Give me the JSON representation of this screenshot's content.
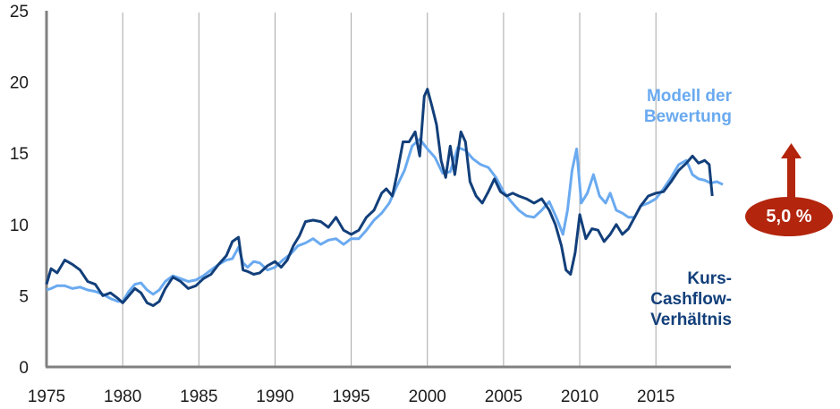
{
  "chart_data": {
    "type": "line",
    "title": "",
    "xlabel": "",
    "ylabel": "",
    "ylim": [
      0,
      25
    ],
    "xlim": [
      1975,
      2019.5
    ],
    "yticks": [
      0,
      5,
      10,
      15,
      20,
      25
    ],
    "xticks": [
      1975,
      1980,
      1985,
      1990,
      1995,
      2000,
      2005,
      2010,
      2015
    ],
    "grid": "vertical lines at each 5-year tick",
    "series": [
      {
        "name": "Kurs-Cashflow-Verhältnis",
        "color": "#123f7a",
        "x": [
          1975.0,
          1975.3,
          1975.7,
          1976.2,
          1976.7,
          1977.2,
          1977.7,
          1978.2,
          1978.7,
          1979.2,
          1979.7,
          1980.0,
          1980.4,
          1980.8,
          1981.2,
          1981.6,
          1982.0,
          1982.4,
          1982.8,
          1983.3,
          1983.8,
          1984.3,
          1984.8,
          1985.3,
          1985.8,
          1986.3,
          1986.8,
          1987.2,
          1987.6,
          1987.9,
          1988.2,
          1988.6,
          1989.0,
          1989.5,
          1990.0,
          1990.4,
          1990.8,
          1991.2,
          1991.6,
          1992.0,
          1992.5,
          1993.0,
          1993.5,
          1994.0,
          1994.5,
          1995.0,
          1995.5,
          1996.0,
          1996.5,
          1997.0,
          1997.3,
          1997.7,
          1998.0,
          1998.4,
          1998.8,
          1999.2,
          1999.5,
          1999.8,
          2000.0,
          2000.3,
          2000.6,
          2000.9,
          2001.2,
          2001.5,
          2001.8,
          2002.2,
          2002.5,
          2002.8,
          2003.2,
          2003.6,
          2004.0,
          2004.4,
          2004.8,
          2005.2,
          2005.6,
          2006.0,
          2006.5,
          2007.0,
          2007.5,
          2008.0,
          2008.4,
          2008.8,
          2009.1,
          2009.4,
          2009.7,
          2010.0,
          2010.4,
          2010.8,
          2011.2,
          2011.6,
          2012.0,
          2012.4,
          2012.8,
          2013.2,
          2013.6,
          2014.0,
          2014.5,
          2015.0,
          2015.5,
          2016.0,
          2016.5,
          2017.0,
          2017.4,
          2017.8,
          2018.2,
          2018.5,
          2018.7
        ],
        "values": [
          5.8,
          6.9,
          6.6,
          7.5,
          7.2,
          6.8,
          6.0,
          5.8,
          5.0,
          5.2,
          4.8,
          4.5,
          5.0,
          5.5,
          5.2,
          4.5,
          4.3,
          4.6,
          5.5,
          6.3,
          6.0,
          5.5,
          5.7,
          6.2,
          6.5,
          7.2,
          7.8,
          8.8,
          9.1,
          6.8,
          6.7,
          6.5,
          6.6,
          7.1,
          7.4,
          7.0,
          7.5,
          8.5,
          9.2,
          10.2,
          10.3,
          10.2,
          9.8,
          10.5,
          9.6,
          9.3,
          9.6,
          10.5,
          11.0,
          12.2,
          12.5,
          12.0,
          13.5,
          15.8,
          15.8,
          16.5,
          14.8,
          19.0,
          19.5,
          18.3,
          17.0,
          14.5,
          13.3,
          15.5,
          13.5,
          16.5,
          15.8,
          13.0,
          12.0,
          11.5,
          12.3,
          13.2,
          12.3,
          12.0,
          12.2,
          12.0,
          11.8,
          11.5,
          11.8,
          11.0,
          10.0,
          8.5,
          6.8,
          6.5,
          8.0,
          10.7,
          9.0,
          9.7,
          9.6,
          8.8,
          9.3,
          10.0,
          9.3,
          9.7,
          10.5,
          11.3,
          12.0,
          12.2,
          12.3,
          13.0,
          13.8,
          14.3,
          14.8,
          14.3,
          14.5,
          14.2,
          12.0
        ]
      },
      {
        "name": "Modell der Bewertung",
        "color": "#6aaaf0",
        "x": [
          1975.0,
          1975.3,
          1975.7,
          1976.2,
          1976.7,
          1977.2,
          1977.7,
          1978.2,
          1978.7,
          1979.2,
          1979.7,
          1980.0,
          1980.4,
          1980.8,
          1981.2,
          1981.6,
          1982.0,
          1982.4,
          1982.8,
          1983.3,
          1983.8,
          1984.3,
          1984.8,
          1985.3,
          1985.8,
          1986.3,
          1986.8,
          1987.2,
          1987.6,
          1987.9,
          1988.2,
          1988.6,
          1989.0,
          1989.5,
          1990.0,
          1990.5,
          1991.0,
          1991.5,
          1992.0,
          1992.5,
          1993.0,
          1993.5,
          1994.0,
          1994.5,
          1995.0,
          1995.5,
          1996.0,
          1996.5,
          1997.0,
          1997.5,
          1998.0,
          1998.5,
          1999.0,
          1999.5,
          2000.0,
          2000.5,
          2001.0,
          2001.5,
          2002.0,
          2002.5,
          2003.0,
          2003.5,
          2004.0,
          2004.5,
          2005.0,
          2005.5,
          2006.0,
          2006.5,
          2007.0,
          2007.5,
          2008.0,
          2008.5,
          2008.9,
          2009.2,
          2009.5,
          2009.8,
          2010.1,
          2010.5,
          2010.9,
          2011.3,
          2011.7,
          2012.0,
          2012.4,
          2012.8,
          2013.2,
          2013.6,
          2014.0,
          2014.5,
          2015.0,
          2015.5,
          2016.0,
          2016.5,
          2017.0,
          2017.4,
          2017.8,
          2018.2,
          2018.6,
          2019.0,
          2019.4
        ],
        "values": [
          5.4,
          5.5,
          5.7,
          5.7,
          5.5,
          5.6,
          5.4,
          5.3,
          5.1,
          4.8,
          4.6,
          4.6,
          5.3,
          5.8,
          5.9,
          5.4,
          5.1,
          5.4,
          6.0,
          6.4,
          6.2,
          6.0,
          6.1,
          6.4,
          6.8,
          7.2,
          7.5,
          7.6,
          8.4,
          7.3,
          7.0,
          7.4,
          7.3,
          6.8,
          7.0,
          7.5,
          7.9,
          8.5,
          8.7,
          9.0,
          8.6,
          8.9,
          9.0,
          8.6,
          9.0,
          9.0,
          9.6,
          10.3,
          10.8,
          11.5,
          12.7,
          13.8,
          15.5,
          16.0,
          15.3,
          14.7,
          13.6,
          13.7,
          15.4,
          15.2,
          14.6,
          14.2,
          14.0,
          13.3,
          12.3,
          11.6,
          11.0,
          10.6,
          10.5,
          11.0,
          11.6,
          10.4,
          9.3,
          11.0,
          13.8,
          15.3,
          11.5,
          12.2,
          13.5,
          12.0,
          11.5,
          12.2,
          11.0,
          10.8,
          10.5,
          10.5,
          11.3,
          11.5,
          11.8,
          12.5,
          13.3,
          14.2,
          14.5,
          13.5,
          13.2,
          13.1,
          12.9,
          13.0,
          12.8
        ]
      }
    ],
    "annotations": [
      {
        "text": "Modell der Bewertung",
        "color": "#6aaaf0"
      },
      {
        "text": "Kurs-Cashflow-Verhältnis",
        "color": "#123f7a"
      },
      {
        "text": "5,0 %",
        "shape": "red ellipse with upward arrow",
        "color": "#b3250d"
      }
    ]
  },
  "labels": {
    "model_line1": "Modell der",
    "model_line2": "Bewertung",
    "kcv_line1": "Kurs-",
    "kcv_line2": "Cashflow-",
    "kcv_line3": "Verhältnis",
    "badge": "5,0 %"
  },
  "colors": {
    "dark_series": "#123f7a",
    "light_series": "#6aaaf0",
    "badge": "#b3250d",
    "axis": "#808080",
    "grid": "#a6a6a6"
  }
}
